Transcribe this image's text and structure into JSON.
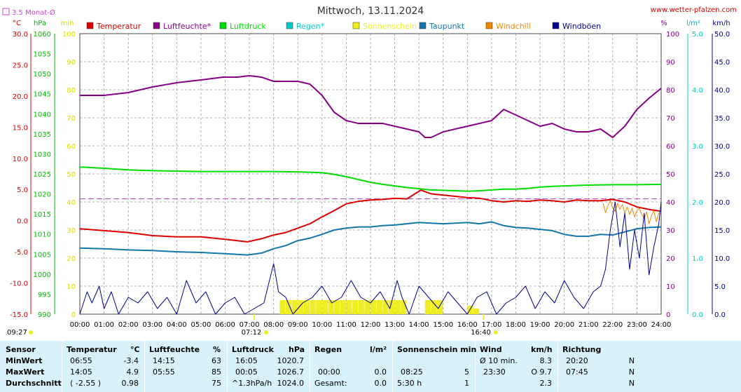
{
  "site": "www.wetter-pfalzen.com",
  "chart_data": {
    "type": "line",
    "title": "Mittwoch, 13.11.2024",
    "x_start": "00:00",
    "x_end": "24:00",
    "x_ticks": [
      "00:00",
      "01:00",
      "02:00",
      "03:00",
      "04:00",
      "05:00",
      "06:00",
      "07:00",
      "08:00",
      "09:00",
      "10:00",
      "11:00",
      "12:00",
      "13:00",
      "14:00",
      "15:00",
      "16:00",
      "17:00",
      "18:00",
      "19:00",
      "20:00",
      "21:00",
      "22:00",
      "23:00",
      "24:00"
    ],
    "axes": {
      "temperature": {
        "unit": "°C",
        "range": [
          -15,
          30
        ],
        "ticks": [
          "30.0",
          "25.0",
          "20.0",
          "15.0",
          "10.0",
          "5.0",
          "0.0",
          "-5.0",
          "-10.0",
          "-15.0"
        ]
      },
      "pressure": {
        "unit": "hPa",
        "range": [
          990,
          1060
        ],
        "ticks": [
          "1060",
          "1055",
          "1050",
          "1045",
          "1040",
          "1035",
          "1030",
          "1025",
          "1020",
          "1015",
          "1010",
          "1005",
          "1000",
          "995",
          "990"
        ]
      },
      "sunshine": {
        "unit": "min",
        "range": [
          0,
          100
        ],
        "ticks": [
          "100",
          "90",
          "80",
          "70",
          "60",
          "50",
          "40",
          "30",
          "20",
          "10",
          "0"
        ]
      },
      "humidity": {
        "unit": "%",
        "range": [
          0,
          100
        ],
        "ticks": [
          "100",
          "90",
          "80",
          "70",
          "60",
          "50",
          "40",
          "30",
          "20",
          "10",
          "0"
        ]
      },
      "rain": {
        "unit": "l/m²",
        "range": [
          0,
          5
        ],
        "ticks": [
          "5.0",
          "4.0",
          "3.0",
          "2.0",
          "1.0",
          "0.0"
        ]
      },
      "wind": {
        "unit": "km/h",
        "range": [
          0,
          50
        ],
        "ticks": [
          "50.0",
          "45.0",
          "40.0",
          "35.0",
          "30.0",
          "25.0",
          "20.0",
          "15.0",
          "10.0",
          "5.0",
          "0.0"
        ]
      }
    },
    "reference_line": {
      "label": "3.5 Monat-Ø",
      "value": 3.5,
      "axis": "temperature",
      "color": "#cc44cc"
    },
    "series": [
      {
        "name": "Temperatur",
        "color": "#dd0000",
        "axis": "temperature",
        "x": [
          0,
          1,
          2,
          3,
          4,
          5,
          6,
          6.92,
          7.5,
          8,
          8.5,
          9,
          9.5,
          10,
          10.5,
          11,
          11.5,
          12,
          12.5,
          13,
          13.5,
          14.08,
          14.5,
          15,
          15.5,
          16,
          16.5,
          17,
          17.5,
          18,
          18.5,
          19,
          19.5,
          20,
          20.5,
          21,
          21.5,
          22,
          22.5,
          23,
          23.5,
          24
        ],
        "y": [
          -1.3,
          -1.6,
          -1.9,
          -2.4,
          -2.6,
          -2.6,
          -3.0,
          -3.4,
          -2.9,
          -2.3,
          -1.9,
          -1.2,
          -0.5,
          0.6,
          1.6,
          2.7,
          3.1,
          3.3,
          3.4,
          3.6,
          3.5,
          4.9,
          4.3,
          4.1,
          3.9,
          3.7,
          3.6,
          3.2,
          3.0,
          3.2,
          3.1,
          3.3,
          3.2,
          3.0,
          3.3,
          3.2,
          3.2,
          3.4,
          3.0,
          2.2,
          1.8,
          1.5
        ]
      },
      {
        "name": "Luftfeuchte*",
        "color": "#880088",
        "axis": "humidity",
        "x": [
          0,
          1,
          2,
          3,
          4,
          5,
          5.92,
          6.5,
          7,
          7.5,
          8,
          8.5,
          9,
          9.5,
          10,
          10.5,
          11,
          11.5,
          12,
          12.5,
          13,
          13.5,
          14,
          14.25,
          14.5,
          15,
          15.5,
          16,
          16.5,
          17,
          17.5,
          18,
          18.5,
          19,
          19.5,
          20,
          20.5,
          21,
          21.5,
          22,
          22.5,
          23,
          23.5,
          24
        ],
        "y": [
          78,
          78,
          79,
          81,
          82.5,
          83.5,
          84.5,
          84.5,
          85,
          84.5,
          83,
          83,
          83,
          82,
          78,
          72,
          69,
          68,
          68,
          68,
          67,
          66,
          65,
          63,
          63,
          65,
          66,
          67,
          68,
          69,
          73,
          71,
          69,
          67,
          68,
          66,
          65,
          65,
          66,
          63,
          67,
          73,
          77,
          80.5
        ]
      },
      {
        "name": "Luftdruck",
        "color": "#00dd00",
        "axis": "pressure",
        "x": [
          0,
          0.08,
          1,
          2,
          3,
          4,
          5,
          6,
          7,
          8,
          9,
          10,
          10.5,
          11,
          11.5,
          12,
          12.5,
          13,
          13.5,
          14,
          14.5,
          15,
          15.5,
          16,
          16.08,
          16.5,
          17,
          17.5,
          18,
          18.5,
          19,
          19.5,
          20,
          21,
          22,
          23,
          24
        ],
        "y": [
          1026.6,
          1026.7,
          1026.4,
          1026.0,
          1025.8,
          1025.7,
          1025.6,
          1025.6,
          1025.6,
          1025.6,
          1025.5,
          1025.3,
          1024.9,
          1024.3,
          1023.6,
          1022.9,
          1022.4,
          1022.0,
          1021.6,
          1021.3,
          1021.0,
          1020.9,
          1020.8,
          1020.7,
          1020.7,
          1020.8,
          1021.0,
          1021.2,
          1021.2,
          1021.4,
          1021.7,
          1021.9,
          1022.0,
          1022.2,
          1022.3,
          1022.3,
          1022.4
        ]
      },
      {
        "name": "Taupunkt",
        "color": "#1177aa",
        "axis": "temperature",
        "x": [
          0,
          1,
          2,
          3,
          4,
          5,
          6,
          6.92,
          7.5,
          8,
          8.5,
          9,
          9.5,
          10,
          10.5,
          11,
          11.5,
          12,
          12.5,
          13,
          13.5,
          14,
          14.5,
          15,
          15.5,
          16,
          16.5,
          17,
          17.5,
          18,
          18.5,
          19,
          19.5,
          20,
          20.5,
          21,
          21.5,
          22,
          22.5,
          23,
          23.5,
          24
        ],
        "y": [
          -4.4,
          -4.5,
          -4.7,
          -4.8,
          -5.0,
          -5.1,
          -5.3,
          -5.5,
          -5.2,
          -4.5,
          -4.0,
          -3.2,
          -2.8,
          -2.2,
          -1.5,
          -1.2,
          -1.0,
          -1.0,
          -0.8,
          -0.7,
          -0.5,
          -0.3,
          -0.4,
          -0.5,
          -0.4,
          -0.3,
          -0.5,
          -0.2,
          -0.8,
          -1.1,
          -1.2,
          -1.4,
          -1.6,
          -2.2,
          -2.5,
          -2.5,
          -2.2,
          -2.3,
          -1.8,
          -1.3,
          -1.1,
          -1.0
        ]
      },
      {
        "name": "Windchill",
        "color": "#ee8800",
        "axis": "temperature",
        "x": [
          21.6,
          21.7,
          21.8,
          21.9,
          22.0,
          22.1,
          22.2,
          22.3,
          22.4,
          22.5,
          22.6,
          22.7,
          22.8,
          22.9,
          23.0,
          23.1,
          23.2,
          23.3,
          23.4,
          23.5,
          23.6,
          23.7,
          23.8,
          23.9,
          24.0
        ],
        "y": [
          2.8,
          1.3,
          2.4,
          3.2,
          2.0,
          1.5,
          2.8,
          1.8,
          2.6,
          1.2,
          2.2,
          1.0,
          2.0,
          0.6,
          1.6,
          2.0,
          1.0,
          0.4,
          1.4,
          -0.5,
          0.8,
          1.6,
          -0.2,
          1.2,
          1.3
        ]
      },
      {
        "name": "Windböen",
        "color": "#000088",
        "axis": "wind",
        "x": [
          0,
          0.3,
          0.5,
          0.8,
          1.0,
          1.3,
          1.6,
          2.0,
          2.4,
          2.8,
          3.2,
          3.6,
          4.0,
          4.4,
          4.8,
          5.2,
          5.6,
          6.0,
          6.4,
          6.8,
          7.2,
          7.6,
          8.0,
          8.2,
          8.5,
          8.8,
          9.2,
          9.6,
          10.0,
          10.4,
          10.8,
          11.2,
          11.6,
          12.0,
          12.4,
          12.8,
          13.1,
          13.3,
          13.6,
          14.0,
          14.4,
          14.8,
          15.2,
          15.6,
          16.0,
          16.4,
          16.8,
          17.2,
          17.6,
          18.0,
          18.4,
          18.8,
          19.2,
          19.6,
          20.0,
          20.4,
          20.8,
          21.2,
          21.5,
          21.7,
          21.9,
          22.1,
          22.3,
          22.5,
          22.7,
          22.9,
          23.1,
          23.3,
          23.5,
          23.7,
          23.9,
          24.0
        ],
        "y": [
          0,
          4,
          2,
          5,
          1,
          4,
          0,
          3,
          2,
          4,
          1,
          3,
          0,
          6,
          2,
          4,
          0,
          2,
          3,
          0,
          1,
          2,
          9,
          4,
          3,
          0,
          2,
          3,
          5,
          2,
          3,
          6,
          3,
          2,
          4,
          1,
          6,
          3,
          0,
          5,
          3,
          1,
          4,
          2,
          0,
          3,
          4,
          0,
          2,
          3,
          5,
          1,
          4,
          2,
          6,
          3,
          1,
          4,
          5,
          8,
          15,
          20,
          12,
          18,
          8,
          15,
          10,
          18,
          7,
          12,
          16,
          20
        ]
      },
      {
        "name": "Sonnenschein",
        "color": "#eeee22",
        "axis": "sunshine",
        "kind": "bars",
        "x": [
          8.25,
          8.5,
          8.75,
          9.0,
          9.25,
          9.5,
          9.75,
          10.0,
          10.25,
          10.5,
          10.75,
          11.0,
          11.25,
          11.5,
          11.75,
          12.0,
          12.25,
          12.5,
          12.75,
          13.0,
          13.25,
          14.25,
          14.5,
          14.75,
          16.0,
          16.25
        ],
        "y": [
          5,
          5,
          5,
          5,
          5,
          5,
          5,
          5,
          5,
          5,
          5,
          5,
          5,
          5,
          5,
          5,
          5,
          5,
          5,
          5,
          5,
          5,
          5,
          5,
          3,
          2
        ]
      },
      {
        "name": "Regen*",
        "color": "#00cccc",
        "axis": "rain",
        "x": [],
        "y": []
      }
    ],
    "axis_labels": {
      "left": [
        "°C",
        "hPa",
        "min"
      ],
      "right": [
        "%",
        "l/m²",
        "km/h"
      ]
    },
    "sun_marks": [
      {
        "label": "07:12",
        "x": 7.2
      },
      {
        "label": "16:40",
        "x": 16.67
      }
    ],
    "corner_time": "09:27"
  },
  "table": {
    "headers": [
      {
        "label": "Sensor",
        "unit": ""
      },
      {
        "label": "Temperatur",
        "unit": "°C"
      },
      {
        "label": "Luftfeuchte",
        "unit": "%"
      },
      {
        "label": "Luftdruck",
        "unit": "hPa"
      },
      {
        "label": "Regen",
        "unit": "l/m²"
      },
      {
        "label": "Sonnenschein min",
        "unit": ""
      },
      {
        "label": "Wind",
        "unit": "km/h"
      },
      {
        "label": "Richtung",
        "unit": ""
      }
    ],
    "rows": [
      {
        "label": "MinWert",
        "temp_time": "06:55",
        "temp_val": "-3.4",
        "hum_time": "14:15",
        "hum_val": "63",
        "press_time": "16:05",
        "press_val": "1020.7",
        "rain_time": "",
        "rain_val": "",
        "sun_time": "",
        "sun_val": "",
        "wind_time": "Ø 10 min.",
        "wind_val": "8.3",
        "dir_time": "20:20",
        "dir_val": "N"
      },
      {
        "label": "MaxWert",
        "temp_time": "14:05",
        "temp_val": "4.9",
        "hum_time": "05:55",
        "hum_val": "85",
        "press_time": "00:05",
        "press_val": "1026.7",
        "rain_time": "00:00",
        "rain_val": "0.0",
        "sun_time": "08:25",
        "sun_val": "5",
        "wind_time": "23:30",
        "wind_val": "O 9.7",
        "dir_time": "07:45",
        "dir_val": "N"
      },
      {
        "label": "Durchschnitt",
        "temp_time": "( -2.55 )",
        "temp_val": "0.98",
        "hum_time": "",
        "hum_val": "75",
        "press_time": "^1.3hPa/h",
        "press_val": "1024.0",
        "rain_time": "Gesamt:",
        "rain_val": "0.0",
        "sun_time": "5:30 h",
        "sun_val": "1",
        "wind_time": "",
        "wind_val": "2.3",
        "dir_time": "",
        "dir_val": "N"
      }
    ]
  }
}
